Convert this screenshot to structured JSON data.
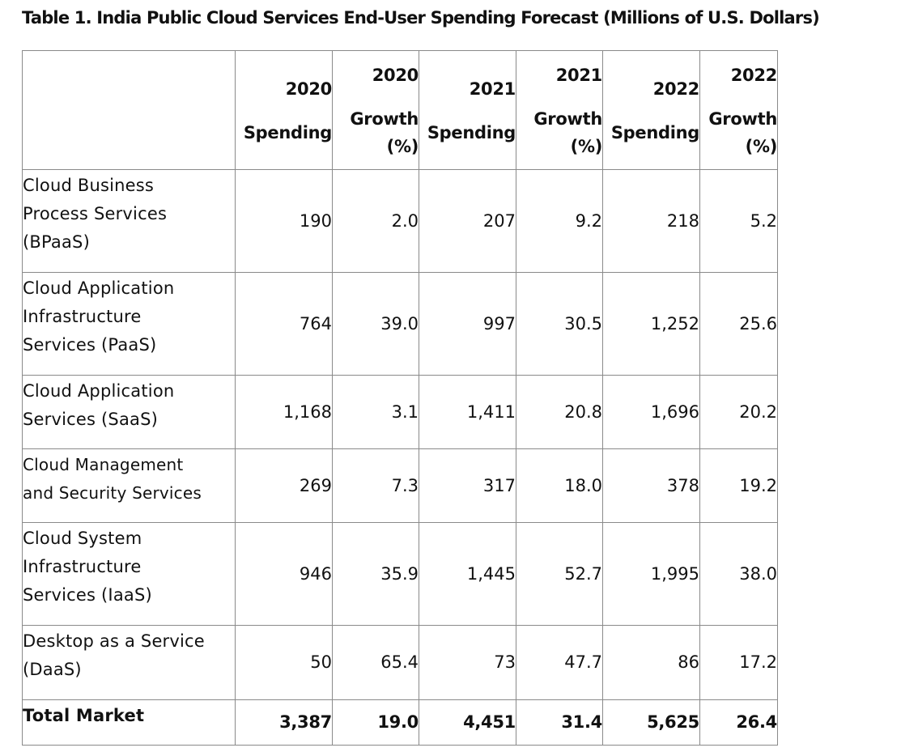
{
  "title": "Table 1. India Public Cloud Services End-User Spending Forecast (Millions of U.S. Dollars)",
  "header": [
    {
      "year": "2020",
      "kind": "Spending",
      "unit": ""
    },
    {
      "year": "2020",
      "kind": "Growth",
      "unit": "(%)"
    },
    {
      "year": "2021",
      "kind": "Spending",
      "unit": ""
    },
    {
      "year": "2021",
      "kind": "Growth",
      "unit": "(%)"
    },
    {
      "year": "2022",
      "kind": "Spending",
      "unit": ""
    },
    {
      "year": "2022",
      "kind": "Growth",
      "unit": "(%)"
    }
  ],
  "rows": [
    {
      "label": [
        "Cloud Business",
        "Process Services",
        "(BPaaS)"
      ],
      "values": [
        "190",
        "2.0",
        "207",
        "9.2",
        "218",
        "5.2"
      ]
    },
    {
      "label": [
        "Cloud Application",
        "Infrastructure",
        "Services (PaaS)"
      ],
      "values": [
        "764",
        "39.0",
        "997",
        "30.5",
        "1,252",
        "25.6"
      ]
    },
    {
      "label": [
        "Cloud Application",
        "Services (SaaS)"
      ],
      "values": [
        "1,168",
        "3.1",
        "1,411",
        "20.8",
        "1,696",
        "20.2"
      ]
    },
    {
      "label": [
        "Cloud Management",
        "and Security Services"
      ],
      "values": [
        "269",
        "7.3",
        "317",
        "18.0",
        "378",
        "19.2"
      ]
    },
    {
      "label": [
        "Cloud System",
        "Infrastructure",
        "Services (IaaS)"
      ],
      "values": [
        "946",
        "35.9",
        "1,445",
        "52.7",
        "1,995",
        "38.0"
      ]
    },
    {
      "label": [
        "Desktop as a Service",
        "(DaaS)"
      ],
      "values": [
        "50",
        "65.4",
        "73",
        "47.7",
        "86",
        "17.2"
      ]
    }
  ],
  "total": {
    "label": "Total Market",
    "values": [
      "3,387",
      "19.0",
      "4,451",
      "31.4",
      "5,625",
      "26.4"
    ]
  }
}
